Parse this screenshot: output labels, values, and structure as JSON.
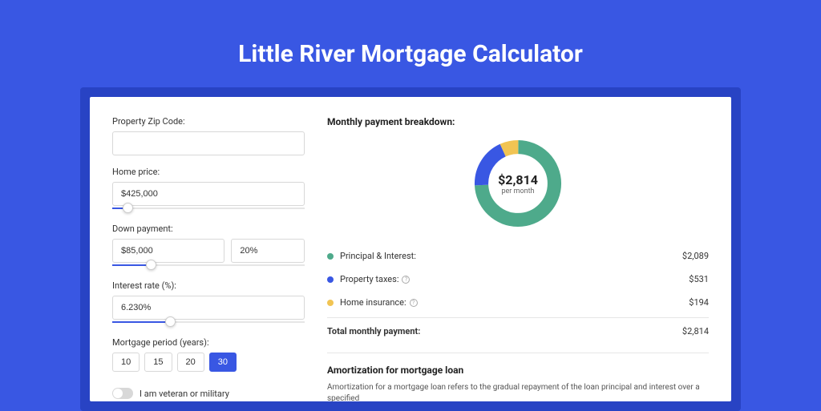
{
  "page_title": "Little River Mortgage Calculator",
  "colors": {
    "page_bg": "#3957e3",
    "card_back": "#2843c4",
    "accent": "#3957e3",
    "series_pi": "#4eaa8b",
    "series_tax": "#3957e3",
    "series_ins": "#f1c453"
  },
  "form": {
    "zip": {
      "label": "Property Zip Code:",
      "value": ""
    },
    "home_price": {
      "label": "Home price:",
      "value": "$425,000",
      "slider_pct": 8
    },
    "down_payment": {
      "label": "Down payment:",
      "value": "$85,000",
      "pct_value": "20%",
      "slider_pct": 20
    },
    "interest": {
      "label": "Interest rate (%):",
      "value": "6.230%",
      "slider_pct": 30
    },
    "period": {
      "label": "Mortgage period (years):",
      "options": [
        "10",
        "15",
        "20",
        "30"
      ],
      "selected": "30"
    },
    "veteran": {
      "label": "I am veteran or military",
      "value": false
    }
  },
  "breakdown": {
    "title": "Monthly payment breakdown:",
    "donut": {
      "amount": "$2,814",
      "sub": "per month",
      "segments": [
        {
          "key": "pi",
          "pct": 74.2,
          "color": "#4eaa8b"
        },
        {
          "key": "tax",
          "pct": 18.9,
          "color": "#3957e3"
        },
        {
          "key": "ins",
          "pct": 6.9,
          "color": "#f1c453"
        }
      ]
    },
    "items": [
      {
        "key": "pi",
        "label": "Principal & Interest:",
        "value": "$2,089",
        "info": false,
        "color": "#4eaa8b"
      },
      {
        "key": "tax",
        "label": "Property taxes:",
        "value": "$531",
        "info": true,
        "color": "#3957e3"
      },
      {
        "key": "ins",
        "label": "Home insurance:",
        "value": "$194",
        "info": true,
        "color": "#f1c453"
      }
    ],
    "total": {
      "label": "Total monthly payment:",
      "value": "$2,814"
    }
  },
  "amortization": {
    "title": "Amortization for mortgage loan",
    "text": "Amortization for a mortgage loan refers to the gradual repayment of the loan principal and interest over a specified"
  }
}
